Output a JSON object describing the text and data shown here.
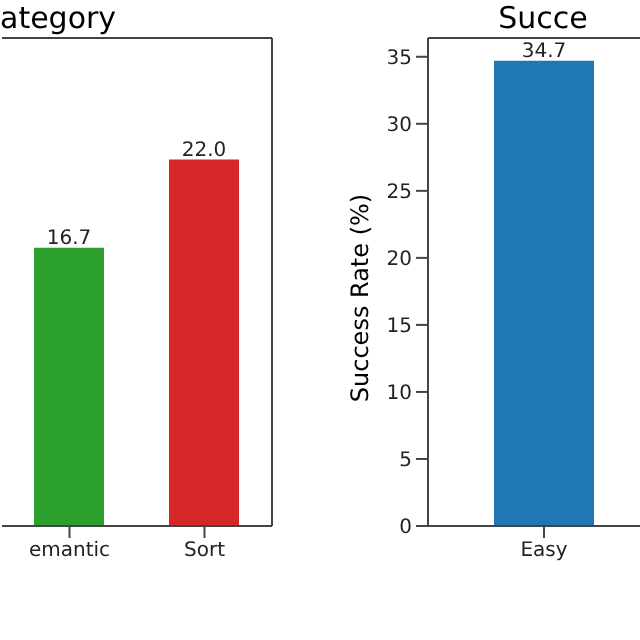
{
  "chart_data": [
    {
      "type": "bar",
      "title": "ategory",
      "categories": [
        "emantic",
        "Sort"
      ],
      "values": [
        16.7,
        22.0
      ],
      "colors": [
        "#2ca02c",
        "#d62728"
      ],
      "value_labels": [
        "16.7",
        "22.0"
      ],
      "ylim": [
        0,
        29.3
      ],
      "tick_labels": "x"
    },
    {
      "type": "bar",
      "title": "Succe",
      "ylabel": "Success Rate (%)",
      "categories": [
        "Easy"
      ],
      "values": [
        34.7
      ],
      "colors": [
        "#1f77b4"
      ],
      "value_labels": [
        "34.7"
      ],
      "ylim": [
        0,
        36.4
      ],
      "yticks": [
        0,
        5,
        10,
        15,
        20,
        25,
        30,
        35
      ]
    }
  ]
}
